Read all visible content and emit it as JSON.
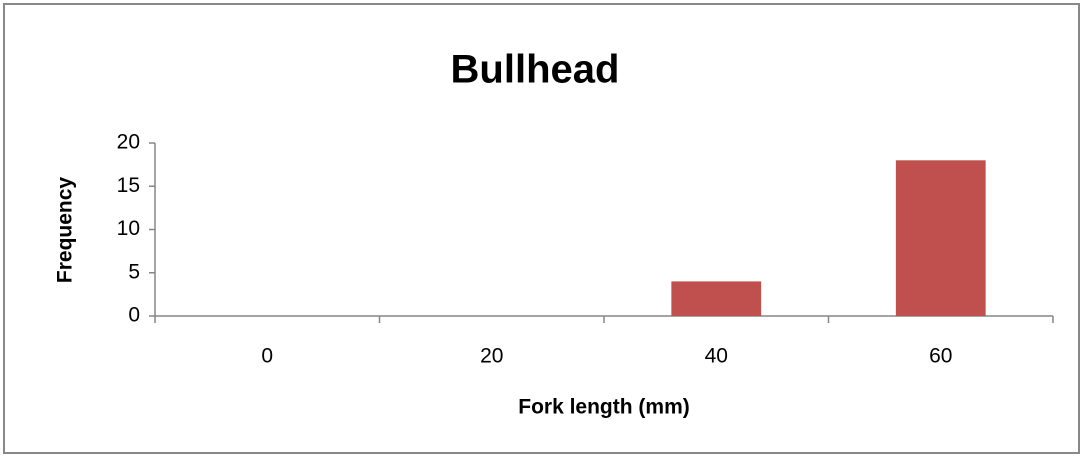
{
  "chart_data": {
    "type": "bar",
    "title": "Bullhead",
    "x_label": "Fork length (mm)",
    "y_label": "Frequency",
    "categories": [
      "0",
      "20",
      "40",
      "60"
    ],
    "values": [
      0,
      0,
      4,
      18
    ],
    "color": "#c0504d",
    "ylim": [
      0,
      20
    ],
    "yticks": [
      0,
      5,
      10,
      15,
      20
    ],
    "grid": false
  }
}
